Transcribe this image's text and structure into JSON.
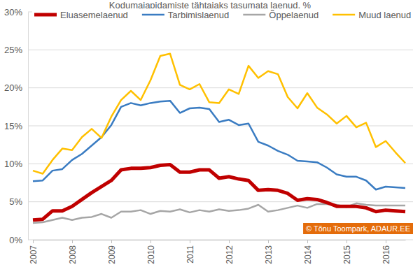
{
  "chart_data": {
    "type": "line",
    "title": "Kodumajapidamiste tähtajaks tasumata laenud, %",
    "categories": [
      "2007",
      null,
      null,
      null,
      "2008",
      null,
      null,
      null,
      "2009",
      null,
      null,
      null,
      "2010",
      null,
      null,
      null,
      "2011",
      null,
      null,
      null,
      "2012",
      null,
      null,
      null,
      "2013",
      null,
      null,
      null,
      "2014",
      null,
      null,
      null,
      "2015",
      null,
      null,
      null,
      "2016",
      null,
      null
    ],
    "series": [
      {
        "name": "Eluasemelaenud",
        "color": "#c00000",
        "values": [
          2.6,
          2.7,
          3.8,
          3.8,
          4.4,
          5.3,
          6.2,
          7.0,
          7.8,
          9.2,
          9.4,
          9.4,
          9.5,
          9.8,
          9.9,
          8.9,
          8.9,
          9.2,
          9.2,
          8.1,
          8.3,
          8.0,
          7.8,
          6.5,
          6.6,
          6.5,
          6.1,
          5.2,
          5.4,
          5.3,
          4.9,
          4.4,
          4.4,
          4.4,
          4.2,
          3.7,
          3.9,
          3.8,
          3.7
        ]
      },
      {
        "name": "Tarbimislaenud",
        "color": "#3a7cc2",
        "values": [
          7.7,
          7.8,
          9.1,
          9.3,
          10.5,
          11.3,
          12.4,
          13.5,
          15.1,
          17.5,
          18.0,
          17.7,
          18.0,
          18.2,
          18.3,
          16.7,
          17.3,
          17.4,
          17.2,
          15.5,
          15.8,
          15.1,
          15.3,
          12.9,
          12.4,
          11.7,
          11.2,
          10.4,
          10.3,
          10.2,
          9.5,
          8.6,
          8.3,
          8.3,
          7.8,
          6.6,
          7.0,
          6.9,
          6.8
        ]
      },
      {
        "name": "Õppelaenud",
        "color": "#a6a6a6",
        "values": [
          2.2,
          2.3,
          2.6,
          2.9,
          2.6,
          2.9,
          3.0,
          3.4,
          2.9,
          3.7,
          3.7,
          3.9,
          3.4,
          3.8,
          3.7,
          4.0,
          3.6,
          3.9,
          3.7,
          4.0,
          3.8,
          3.9,
          4.1,
          4.6,
          3.7,
          3.9,
          4.2,
          4.5,
          4.2,
          4.7,
          4.7,
          4.6,
          4.3,
          4.8,
          4.6,
          4.5,
          4.5,
          4.5,
          4.5
        ]
      },
      {
        "name": "Muud laenud",
        "color": "#ffc000",
        "values": [
          9.1,
          8.7,
          10.5,
          12.0,
          11.8,
          13.5,
          14.6,
          13.4,
          16.2,
          18.4,
          19.6,
          18.4,
          21.0,
          24.2,
          24.5,
          20.4,
          19.8,
          20.5,
          18.1,
          18.0,
          19.8,
          19.2,
          22.9,
          21.3,
          22.2,
          21.8,
          18.8,
          17.3,
          19.3,
          17.4,
          16.5,
          15.3,
          16.3,
          14.8,
          15.4,
          12.2,
          13.0,
          11.5,
          10.1
        ]
      }
    ],
    "ylim": [
      0,
      30
    ],
    "yticks": [
      {
        "value": 0,
        "label": "0%"
      },
      {
        "value": 5,
        "label": "5%"
      },
      {
        "value": 10,
        "label": "10%"
      },
      {
        "value": 15,
        "label": "15%"
      },
      {
        "value": 20,
        "label": "20%"
      },
      {
        "value": 25,
        "label": "25%"
      },
      {
        "value": 30,
        "label": "30%"
      }
    ],
    "grid": true,
    "legend": "top-left",
    "annotations": [
      "© Tõnu Toompark, ADAUR.EE"
    ]
  }
}
